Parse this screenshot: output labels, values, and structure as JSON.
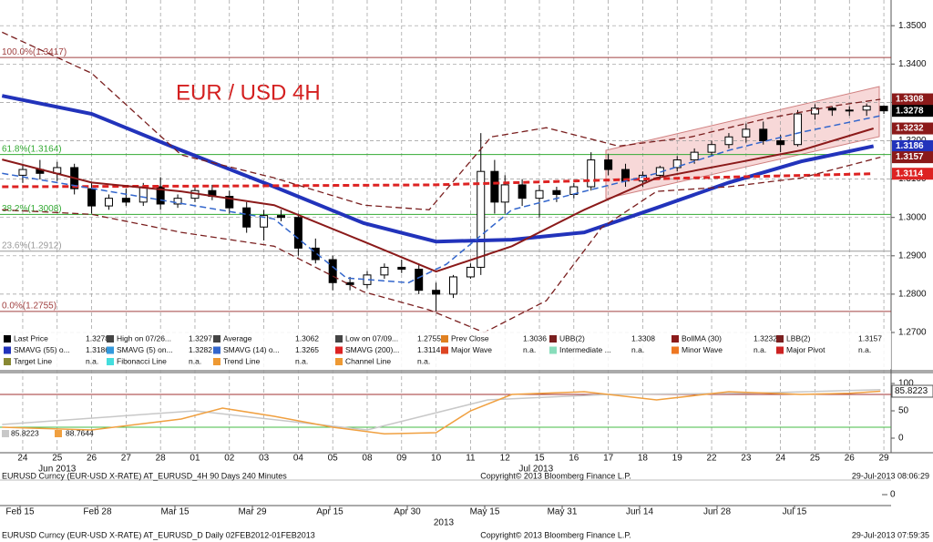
{
  "chart_data": [
    {
      "type": "candlestick",
      "title": "EUR / USD 4H",
      "xlim": [
        -0.66,
        25.21
      ],
      "ylim": [
        1.2605,
        1.3567
      ],
      "xticks": [
        {
          "value": 0,
          "label": "24"
        },
        {
          "value": 1,
          "label": "25"
        },
        {
          "value": 2,
          "label": "26"
        },
        {
          "value": 3,
          "label": "27"
        },
        {
          "value": 4,
          "label": "28"
        },
        {
          "value": 5,
          "label": "01"
        },
        {
          "value": 6,
          "label": "02"
        },
        {
          "value": 7,
          "label": "03"
        },
        {
          "value": 8,
          "label": "04"
        },
        {
          "value": 9,
          "label": "05"
        },
        {
          "value": 10,
          "label": "08"
        },
        {
          "value": 11,
          "label": "09"
        },
        {
          "value": 12,
          "label": "10"
        },
        {
          "value": 13,
          "label": "11"
        },
        {
          "value": 14,
          "label": "12"
        },
        {
          "value": 15,
          "label": "15"
        },
        {
          "value": 16,
          "label": "16"
        },
        {
          "value": 17,
          "label": "17"
        },
        {
          "value": 18,
          "label": "18"
        },
        {
          "value": 19,
          "label": "19"
        },
        {
          "value": 20,
          "label": "22"
        },
        {
          "value": 21,
          "label": "23"
        },
        {
          "value": 22,
          "label": "24"
        },
        {
          "value": 23,
          "label": "25"
        },
        {
          "value": 24,
          "label": "26"
        },
        {
          "value": 25,
          "label": "29"
        }
      ],
      "x_period_labels": [
        {
          "value": 1,
          "label": "Jun 2013"
        },
        {
          "value": 14.9,
          "label": "Jul 2013"
        }
      ],
      "yticks": [
        {
          "value": 1.27,
          "label": "1.2700"
        },
        {
          "value": 1.28,
          "label": "1.2800"
        },
        {
          "value": 1.29,
          "label": "1.2900"
        },
        {
          "value": 1.3,
          "label": "1.3000"
        },
        {
          "value": 1.31,
          "label": "1.3100"
        },
        {
          "value": 1.32,
          "label": "1.3200"
        },
        {
          "value": 1.33,
          "label": "1.3300"
        },
        {
          "value": 1.34,
          "label": "1.3400"
        },
        {
          "value": 1.35,
          "label": "1.3500"
        }
      ],
      "grid": true,
      "x": [
        0,
        0.5,
        1,
        1.5,
        2,
        2.5,
        3,
        3.5,
        4,
        4.5,
        5,
        5.5,
        6,
        6.5,
        7,
        7.5,
        8,
        8.5,
        9,
        9.5,
        10,
        10.5,
        11,
        11.5,
        12,
        12.5,
        13,
        13.3,
        13.7,
        14,
        14.5,
        15,
        15.5,
        16,
        16.5,
        17,
        17.5,
        18,
        18.5,
        19,
        19.5,
        20,
        20.5,
        21,
        21.5,
        22,
        22.5,
        23,
        23.5,
        24,
        24.5,
        25
      ],
      "open": [
        1.311,
        1.3125,
        1.3115,
        1.313,
        1.3075,
        1.303,
        1.305,
        1.304,
        1.308,
        1.3035,
        1.305,
        1.307,
        1.3055,
        1.3025,
        1.2975,
        1.3005,
        1.3,
        1.292,
        1.289,
        1.283,
        1.2825,
        1.285,
        1.287,
        1.2865,
        1.281,
        1.28,
        1.2845,
        1.287,
        1.312,
        1.304,
        1.3085,
        1.305,
        1.307,
        1.306,
        1.308,
        1.315,
        1.3125,
        1.3095,
        1.311,
        1.313,
        1.315,
        1.317,
        1.319,
        1.321,
        1.323,
        1.32,
        1.319,
        1.327,
        1.3285,
        1.328,
        1.328,
        1.329
      ],
      "high": [
        1.314,
        1.315,
        1.3145,
        1.314,
        1.309,
        1.306,
        1.3075,
        1.309,
        1.3105,
        1.306,
        1.308,
        1.3085,
        1.307,
        1.304,
        1.302,
        1.302,
        1.301,
        1.2945,
        1.29,
        1.2845,
        1.286,
        1.288,
        1.289,
        1.288,
        1.283,
        1.285,
        1.288,
        1.322,
        1.315,
        1.311,
        1.31,
        1.3085,
        1.308,
        1.309,
        1.317,
        1.3165,
        1.314,
        1.312,
        1.3135,
        1.316,
        1.318,
        1.32,
        1.322,
        1.3245,
        1.325,
        1.3215,
        1.328,
        1.3295,
        1.329,
        1.329,
        1.3297,
        1.3292
      ],
      "low": [
        1.309,
        1.31,
        1.3095,
        1.306,
        1.301,
        1.302,
        1.303,
        1.303,
        1.302,
        1.3025,
        1.304,
        1.3045,
        1.301,
        1.296,
        1.294,
        1.299,
        1.29,
        1.288,
        1.281,
        1.281,
        1.2815,
        1.284,
        1.2855,
        1.28,
        1.2755,
        1.279,
        1.284,
        1.285,
        1.301,
        1.301,
        1.303,
        1.3,
        1.304,
        1.305,
        1.307,
        1.311,
        1.308,
        1.308,
        1.31,
        1.312,
        1.314,
        1.316,
        1.318,
        1.3195,
        1.319,
        1.317,
        1.3185,
        1.3255,
        1.3265,
        1.3265,
        1.3265,
        1.327
      ],
      "close": [
        1.3125,
        1.3115,
        1.313,
        1.3075,
        1.303,
        1.305,
        1.304,
        1.308,
        1.3035,
        1.305,
        1.307,
        1.3055,
        1.3025,
        1.2975,
        1.3005,
        1.3,
        1.292,
        1.289,
        1.283,
        1.2825,
        1.285,
        1.287,
        1.2865,
        1.281,
        1.28,
        1.2845,
        1.287,
        1.312,
        1.304,
        1.3085,
        1.305,
        1.307,
        1.306,
        1.308,
        1.315,
        1.3125,
        1.3095,
        1.311,
        1.313,
        1.315,
        1.317,
        1.319,
        1.321,
        1.323,
        1.32,
        1.319,
        1.327,
        1.3285,
        1.328,
        1.328,
        1.329,
        1.3278
      ],
      "series": [
        {
          "color": "#2233bb",
          "width": 4,
          "dashed": false,
          "x": [
            -0.6,
            2,
            4.6,
            7.3,
            9.9,
            12,
            14.2,
            16.3,
            18.4,
            20.5,
            22.6,
            24.7
          ],
          "values": [
            1.3317,
            1.327,
            1.3175,
            1.308,
            1.2985,
            1.2937,
            1.2942,
            1.2961,
            1.3025,
            1.3091,
            1.3146,
            1.3186
          ]
        },
        {
          "color": "#dd2222",
          "width": 3,
          "dashed": true,
          "x": [
            -0.6,
            6,
            12,
            18,
            24.7
          ],
          "values": [
            1.308,
            1.3082,
            1.3085,
            1.31,
            1.3114
          ]
        },
        {
          "color": "#8b1a1a",
          "width": 2,
          "dashed": false,
          "x": [
            -0.6,
            2,
            4.6,
            7.3,
            9.9,
            12,
            14.2,
            16.3,
            18.4,
            20.5,
            22.6,
            24.7
          ],
          "values": [
            1.3151,
            1.3091,
            1.3068,
            1.3032,
            1.2937,
            1.2859,
            1.2925,
            1.302,
            1.3103,
            1.3139,
            1.3175,
            1.3232
          ]
        },
        {
          "color": "#7a1f1f",
          "width": 1.3,
          "dashed": true,
          "x": [
            -0.6,
            2,
            4.6,
            7.3,
            9.9,
            11.8,
            13.6,
            15.2,
            17.3,
            19.4,
            21.6,
            23.7,
            24.9
          ],
          "values": [
            1.3483,
            1.3376,
            1.3163,
            1.3103,
            1.3032,
            1.302,
            1.321,
            1.3234,
            1.3186,
            1.321,
            1.3258,
            1.3293,
            1.3308
          ]
        },
        {
          "color": "#7a1f1f",
          "width": 1.3,
          "dashed": true,
          "x": [
            -0.6,
            2,
            4.6,
            7.3,
            9.9,
            11.8,
            13.4,
            15.2,
            16.8,
            18.4,
            20.5,
            22.6,
            24.9
          ],
          "values": [
            1.302,
            1.3008,
            1.2961,
            1.2925,
            1.2806,
            1.2759,
            1.27,
            1.2783,
            1.2973,
            1.3068,
            1.308,
            1.3103,
            1.3157
          ]
        },
        {
          "color": "#3366cc",
          "width": 1.5,
          "dashed": true,
          "x": [
            -0.6,
            3.3,
            7.3,
            9.4,
            11.2,
            12.3,
            14.2,
            16.3,
            18.4,
            20.5,
            22.6,
            24.9
          ],
          "values": [
            1.3115,
            1.3056,
            1.2996,
            1.2842,
            1.283,
            1.2878,
            1.302,
            1.3068,
            1.3115,
            1.3175,
            1.3222,
            1.3265
          ]
        }
      ],
      "levels": [
        {
          "value": 1.3417,
          "label": "100.0%(1.3417)",
          "color": "#a04040"
        },
        {
          "value": 1.3164,
          "label": "61.8%(1.3164)",
          "color": "#33aa33"
        },
        {
          "value": 1.3008,
          "label": "38.2%(1.3008)",
          "color": "#33aa33"
        },
        {
          "value": 1.2912,
          "label": "23.6%(1.2912)",
          "color": "#999999"
        },
        {
          "value": 1.2755,
          "label": "0.0%(1.2755)",
          "color": "#a04040"
        }
      ],
      "price_tags": [
        {
          "value": 1.3308,
          "color": "#8b1a1a"
        },
        {
          "value": 1.3278,
          "color": "#000000"
        },
        {
          "value": 1.3232,
          "color": "#8b1a1a"
        },
        {
          "value": 1.3186,
          "color": "#2233bb"
        },
        {
          "value": 1.3157,
          "color": "#8b1a1a"
        },
        {
          "value": 1.3114,
          "color": "#dd2222"
        }
      ],
      "legend": [
        {
          "label": "Last Price",
          "value": "1.3278",
          "color": "#000000"
        },
        {
          "label": "High on 07/26...",
          "value": "1.3297",
          "color": "#444444"
        },
        {
          "label": "Average",
          "value": "1.3062",
          "color": "#444444"
        },
        {
          "label": "Low on 07/09...",
          "value": "1.2755",
          "color": "#444444"
        },
        {
          "label": "Prev Close",
          "value": "1.3036",
          "color": "#e08020"
        },
        {
          "label": "UBB(2)",
          "value": "1.3308",
          "color": "#7a1f1f"
        },
        {
          "label": "BollMA (30)",
          "value": "1.3232",
          "color": "#8b1a1a"
        },
        {
          "label": "LBB(2)",
          "value": "1.3157",
          "color": "#7a1f1f"
        },
        {
          "label": "SMAVG (55) o...",
          "value": "1.3186",
          "color": "#2233bb"
        },
        {
          "label": "SMAVG (5) on...",
          "value": "1.3282",
          "color": "#3399dd"
        },
        {
          "label": "SMAVG (14) o...",
          "value": "1.3265",
          "color": "#3366cc"
        },
        {
          "label": "SMAVG (200)...",
          "value": "1.3114",
          "color": "#dd2222"
        },
        {
          "label": "Major Wave",
          "value": "n.a.",
          "color": "#dd4422"
        },
        {
          "label": "Intermediate ...",
          "value": "n.a.",
          "color": "#88ddbb"
        },
        {
          "label": "Minor Wave",
          "value": "n.a.",
          "color": "#ee7722"
        },
        {
          "label": "Major Pivot",
          "value": "n.a.",
          "color": "#cc2222"
        },
        {
          "label": "Target Line",
          "value": "n.a.",
          "color": "#888833"
        },
        {
          "label": "Fibonacci Line",
          "value": "n.a.",
          "color": "#44dddd"
        },
        {
          "label": "Trend Line",
          "value": "n.a.",
          "color": "#ee9933"
        },
        {
          "label": "Channel Line",
          "value": "n.a.",
          "color": "#ee9933"
        }
      ]
    },
    {
      "type": "line",
      "ylim": [
        -15,
        118.3
      ],
      "yticks": [
        0,
        50,
        100
      ],
      "levels": [
        {
          "value": 20,
          "color": "#44bb44"
        },
        {
          "value": 80,
          "color": "#a03030"
        }
      ],
      "series": [
        {
          "color": "#f0a040",
          "x": [
            -0.6,
            2,
            4.6,
            5.8,
            7.3,
            9,
            10.5,
            12,
            13,
            14.2,
            16.3,
            18.4,
            20.5,
            22.6,
            24,
            24.9
          ],
          "values": [
            20,
            15,
            35,
            55,
            40,
            20,
            8,
            10,
            50,
            80,
            85,
            70,
            85,
            80,
            82,
            85.8223
          ]
        },
        {
          "color": "#c8c8c8",
          "x": [
            -0.6,
            5,
            10,
            13.5,
            17,
            21,
            24.9
          ],
          "values": [
            25,
            50,
            15,
            70,
            80,
            82,
            88.7644
          ]
        }
      ]
    },
    {
      "type": "line",
      "ylim": [
        -3,
        4
      ],
      "yticks": [
        0
      ],
      "axis_title": "2013",
      "categories": [
        "Feb 15",
        "Feb 28",
        "Mar 15",
        "Mar 29",
        "Apr 15",
        "Apr 30",
        "May 15",
        "May 31",
        "Jun 14",
        "Jun 28",
        "Jul 15"
      ]
    }
  ],
  "footers": [
    {
      "left": "EURUSD Curncy (EUR-USD X-RATE) AT_EURUSD_4H 90 Days 240 Minutes",
      "center": "Copyright© 2013 Bloomberg Finance L.P.",
      "right": "29-Jul-2013 08:06:29"
    },
    {
      "left": "EURUSD Curncy (EUR-USD X-RATE) AT_EURUSD_D  Daily 02FEB2012-01FEB2013",
      "center": "Copyright© 2013 Bloomberg Finance L.P.",
      "right": "29-Jul-2013 07:59:35"
    }
  ]
}
